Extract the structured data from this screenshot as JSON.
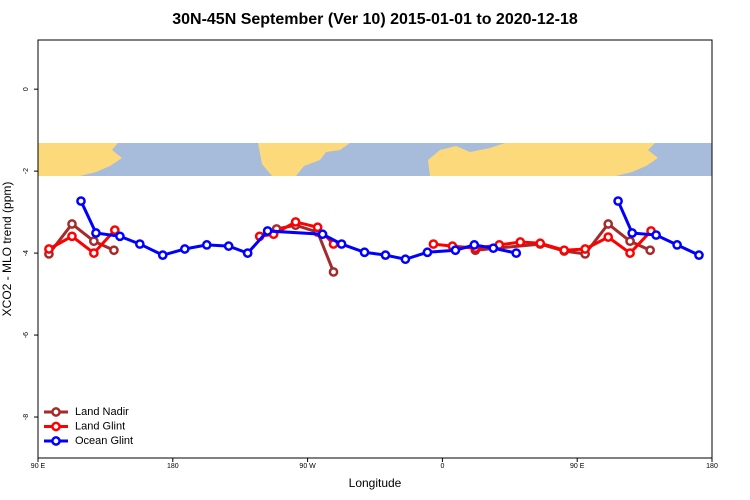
{
  "chart_data": {
    "type": "line",
    "title": "30N-45N September (Ver 10)   2015-01-01 to 2020-12-18",
    "x_label": "Longitude",
    "y_label": "XCO2 - MLO trend (ppm)",
    "xlim": [
      90,
      540
    ],
    "xticks": [
      {
        "value": 90,
        "label": "90 E"
      },
      180,
      {
        "value": 270,
        "label": "90 W"
      },
      {
        "value": 360,
        "label": "0"
      },
      {
        "value": 450,
        "label": "90 E"
      },
      {
        "value": 540,
        "label": "180"
      }
    ],
    "ylim": [
      -9,
      1.2
    ],
    "yticks": [
      0,
      -2,
      -4,
      -6,
      -8
    ],
    "legend": "bottom-left",
    "series": [
      {
        "name": "Land Nadir",
        "color": "#a52a2a",
        "x": [
          97.3,
          112.7,
          127.3,
          140.7,
          null,
          249.3,
          262,
          276.7,
          287.3,
          null,
          382,
          425.3,
          441.3,
          455.3,
          470.7,
          485.3,
          498.7
        ],
        "values": [
          -4.02,
          -3.29,
          -3.71,
          -3.93,
          null,
          -3.41,
          -3.32,
          -3.49,
          -4.46,
          null,
          -3.93,
          -3.78,
          -3.95,
          -4.02,
          -3.29,
          -3.71,
          -3.93
        ]
      },
      {
        "name": "Land Glint",
        "color": "#ff0000",
        "x": [
          97.3,
          112.7,
          127.3,
          141.3,
          null,
          238,
          247.3,
          262,
          276.7,
          287.3,
          null,
          354,
          366.7,
          382,
          398,
          412,
          425.3,
          441.3,
          455.3,
          470.7,
          485.3,
          499.3
        ],
        "values": [
          -3.9,
          -3.59,
          -4.0,
          -3.44,
          null,
          -3.59,
          -3.54,
          -3.24,
          -3.37,
          -3.78,
          null,
          -3.78,
          -3.83,
          -3.88,
          -3.8,
          -3.73,
          -3.76,
          -3.93,
          -3.9,
          -3.61,
          -4.0,
          -3.46
        ]
      },
      {
        "name": "Ocean Glint",
        "color": "#0000ff",
        "x": [
          118.7,
          128.7,
          144.7,
          158,
          173.3,
          188,
          202.7,
          217.3,
          230,
          243.3,
          280,
          292.7,
          308,
          322,
          335.3,
          350,
          368.7,
          381.3,
          394,
          409.3,
          null,
          477.3,
          486.7,
          502.7,
          516.7,
          531.3
        ],
        "values": [
          -2.73,
          -3.51,
          -3.59,
          -3.78,
          -4.05,
          -3.9,
          -3.8,
          -3.83,
          -4.0,
          -3.46,
          -3.54,
          -3.78,
          -3.98,
          -4.05,
          -4.15,
          -3.98,
          -3.93,
          -3.8,
          -3.88,
          -4.0,
          null,
          -2.73,
          -3.51,
          -3.56,
          -3.8,
          -4.05
        ]
      }
    ]
  }
}
